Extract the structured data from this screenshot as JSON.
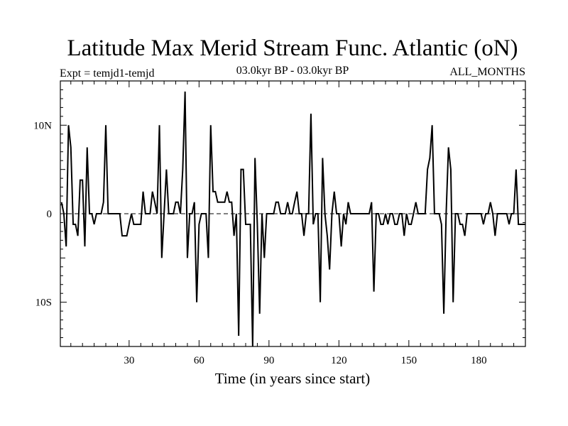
{
  "chart_data": {
    "type": "line",
    "title": "Latitude Max Merid Stream Func. Atlantic (oN)",
    "subtitle_left": "Expt = temjd1-temjd",
    "subtitle_center": "03.0kyr BP - 03.0kyr BP",
    "subtitle_right": "ALL_MONTHS",
    "xlabel": "Time (in years since start)",
    "ylabel": "",
    "xlim": [
      0.5,
      200
    ],
    "ylim": [
      -15,
      15
    ],
    "x_ticks": [
      30,
      60,
      90,
      120,
      150,
      180
    ],
    "x_tick_labels": [
      "30",
      "60",
      "90",
      "120",
      "150",
      "180"
    ],
    "y_ticks": [
      -10,
      0,
      10
    ],
    "y_tick_labels": [
      "10S",
      "0",
      "10N"
    ],
    "zero_line": "dashed",
    "x_start": 1,
    "y": [
      1.3,
      0,
      -3.7,
      10,
      7.5,
      -1.2,
      -1.2,
      -2.5,
      3.8,
      3.8,
      -3.7,
      7.5,
      0,
      0,
      -1.2,
      0,
      0,
      0,
      1.3,
      10,
      0,
      0,
      0,
      0,
      0,
      0,
      -2.5,
      -2.5,
      -2.5,
      -1.2,
      0,
      -1.2,
      -1.2,
      -1.2,
      -1.2,
      2.5,
      0,
      0,
      0,
      2.5,
      1.3,
      0,
      10,
      -5,
      0,
      5,
      0,
      0,
      0,
      1.3,
      1.3,
      0,
      5,
      13.8,
      -5,
      0,
      0,
      1.3,
      -10,
      -1.2,
      0,
      0,
      0,
      -5,
      10,
      2.5,
      2.5,
      1.3,
      1.3,
      1.3,
      1.3,
      2.5,
      1.3,
      1.3,
      -2.5,
      0,
      -13.8,
      5,
      5,
      -1.2,
      -1.2,
      -1.2,
      -15,
      6.3,
      -1.2,
      -11.3,
      0,
      -5,
      0,
      0,
      0,
      0,
      1.3,
      1.3,
      0,
      0,
      0,
      1.3,
      0,
      0,
      1.3,
      2.5,
      0,
      0,
      -2.5,
      0,
      0,
      11.3,
      -1.2,
      0,
      0,
      -10,
      6.3,
      0,
      -2.5,
      -6.3,
      0,
      2.5,
      0,
      0,
      -3.7,
      0,
      -1.2,
      1.3,
      0,
      0,
      0,
      0,
      0,
      0,
      0,
      0,
      0,
      1.3,
      -8.8,
      0,
      0,
      -1.2,
      -1.2,
      0,
      -1.2,
      0,
      0,
      -1.2,
      -1.2,
      0,
      0,
      -2.5,
      0,
      -1.2,
      -1.2,
      0,
      1.3,
      0,
      0,
      0,
      0,
      5,
      6.3,
      10,
      0,
      0,
      0,
      -1.2,
      -11.3,
      0,
      7.5,
      5,
      -10,
      0,
      0,
      -1.2,
      -1.2,
      -2.5,
      0,
      0,
      0,
      0,
      0,
      0,
      0,
      -1.2,
      0,
      0,
      1.3,
      0,
      -2.5,
      0,
      0,
      0,
      0,
      0,
      -1.2,
      0,
      0,
      5,
      -1.2,
      -1.2,
      -1.2,
      -1.2
    ]
  }
}
